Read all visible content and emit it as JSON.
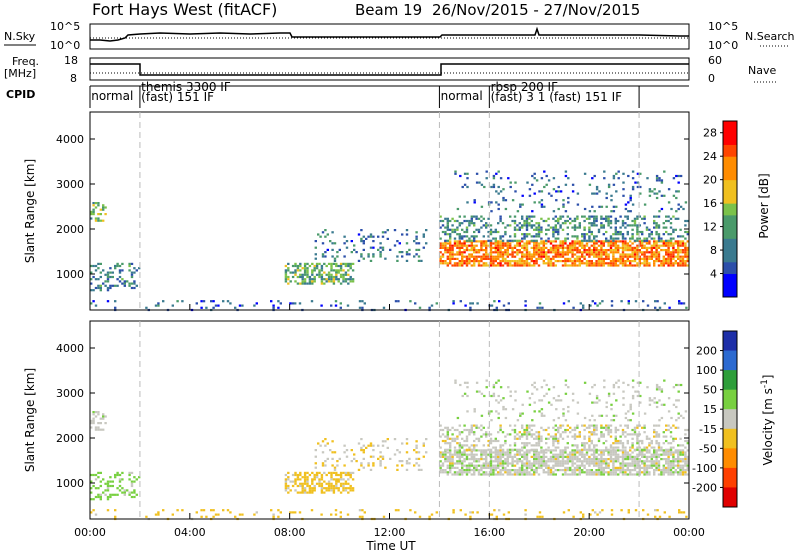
{
  "chart_data": {
    "type": "heatmap",
    "title": {
      "station": "Fort Hays West (fitACF)",
      "beam": "Beam 19",
      "date_range": "26/Nov/2015 - 27/Nov/2015"
    },
    "xlabel": "Time UT",
    "x_ticks": [
      "00:00",
      "04:00",
      "08:00",
      "12:00",
      "16:00",
      "20:00",
      "00:00"
    ],
    "x_range_hours": [
      0,
      24
    ],
    "top_panels": {
      "nsky": {
        "label": "N.Sky",
        "right_label": "N.Search",
        "left_ticks": [
          "10^5",
          "10^0"
        ],
        "right_ticks": [
          "10^5",
          "10^0"
        ]
      },
      "freq": {
        "label": "Freq.",
        "unit": "[MHz]",
        "left_ticks": [
          "18",
          "8"
        ],
        "right_label": "Nave",
        "right_ticks": [
          "60",
          "0"
        ]
      },
      "cpid": {
        "label": "CPID",
        "segments": [
          {
            "name": "normal",
            "start_h": 0,
            "end_h": 2
          },
          {
            "name": "themis 3300 IF (fast) 151 IF",
            "start_h": 2,
            "end_h": 14
          },
          {
            "name": "normal",
            "start_h": 14,
            "end_h": 16
          },
          {
            "name": "rbsp 200 IF (fast) 3 1 (fast) 151 IF",
            "start_h": 16,
            "end_h": 22
          }
        ],
        "segment_lines": [
          {
            "text": "normal",
            "h": 0.05
          },
          {
            "text": "themis 3300 IF",
            "h": 2.05
          },
          {
            "text": "(fast)  151 IF",
            "h": 2.05
          },
          {
            "text": "normal",
            "h": 14.05
          },
          {
            "text": "rbsp 200 IF",
            "h": 16.05
          },
          {
            "text": "(fast)  3 1 (fast)   151 IF",
            "h": 16.05
          }
        ]
      }
    },
    "power": {
      "ylabel": "Slant Range [km]",
      "y_ticks": [
        1000,
        2000,
        3000,
        4000
      ],
      "ylim": [
        200,
        4600
      ],
      "colorbar": {
        "label": "Power [dB]",
        "ticks": [
          4,
          8,
          12,
          16,
          20,
          24,
          28
        ],
        "range": [
          0,
          30
        ]
      }
    },
    "velocity": {
      "ylabel": "Slant Range [km]",
      "y_ticks": [
        1000,
        2000,
        3000,
        4000
      ],
      "ylim": [
        200,
        4600
      ],
      "colorbar": {
        "label": "Velocity [m s^-1]",
        "ticks": [
          "200",
          "100",
          "50",
          "15",
          "-15",
          "-50",
          "-100",
          "-200"
        ]
      }
    },
    "scatter_regions": [
      {
        "t": [
          0.0,
          2.0
        ],
        "r": [
          650,
          1250
        ],
        "power_db": 9,
        "vel": 30,
        "density": 0.35
      },
      {
        "t": [
          0.0,
          0.6
        ],
        "r": [
          2200,
          2600
        ],
        "power_db": 14,
        "vel": 5,
        "density": 0.5
      },
      {
        "t": [
          7.8,
          10.5
        ],
        "r": [
          800,
          1250
        ],
        "power_db": 13,
        "vel": -30,
        "density": 0.6
      },
      {
        "t": [
          9.0,
          13.5
        ],
        "r": [
          1300,
          2000
        ],
        "power_db": 8,
        "vel": -10,
        "density": 0.15
      },
      {
        "t": [
          14.0,
          24.0
        ],
        "r": [
          1200,
          1750
        ],
        "power_db": 22,
        "vel": 2,
        "density": 0.75
      },
      {
        "t": [
          14.0,
          24.0
        ],
        "r": [
          1750,
          2300
        ],
        "power_db": 10,
        "vel": 0,
        "density": 0.35
      },
      {
        "t": [
          14.5,
          24.0
        ],
        "r": [
          2400,
          3300
        ],
        "power_db": 7,
        "vel": 5,
        "density": 0.1
      },
      {
        "t": [
          0.0,
          24.0
        ],
        "r": [
          220,
          420
        ],
        "power_db": 6,
        "vel": -30,
        "density": 0.12
      }
    ],
    "grid": false
  }
}
